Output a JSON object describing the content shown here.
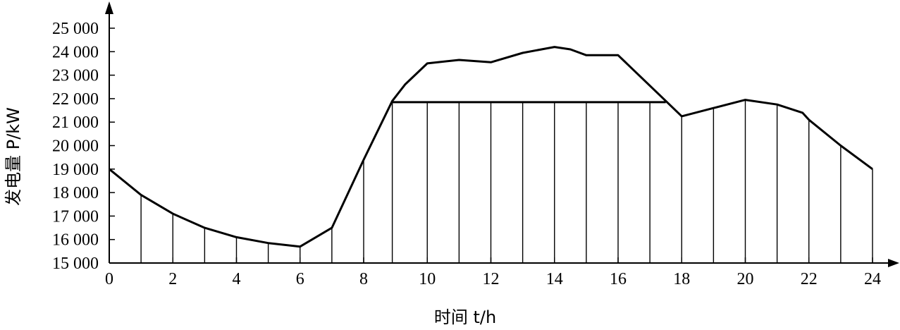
{
  "chart_data": {
    "type": "line",
    "xlabel": "时间 t/h",
    "ylabel": "发电量 P/kW",
    "xlim": [
      0,
      24
    ],
    "ylim": [
      15000,
      25000
    ],
    "x_ticks": [
      "0",
      "2",
      "4",
      "6",
      "8",
      "10",
      "12",
      "14",
      "16",
      "18",
      "20",
      "22",
      "24"
    ],
    "y_ticks": [
      "15 000",
      "16 000",
      "17 000",
      "18 000",
      "19 000",
      "20 000",
      "21 000",
      "22 000",
      "23 000",
      "24 000",
      "25 000"
    ],
    "grid": false,
    "series": [
      {
        "x": [
          0,
          1,
          2,
          3,
          4,
          5,
          6,
          7,
          8,
          8.9,
          9.3,
          10,
          11,
          12,
          13,
          14,
          14.5,
          15,
          16,
          17.5,
          18,
          19,
          20,
          21,
          21.8,
          22,
          23,
          24
        ],
        "y": [
          19000,
          17900,
          17100,
          16500,
          16100,
          15850,
          15700,
          16500,
          19400,
          21900,
          22600,
          23500,
          23650,
          23550,
          23950,
          24200,
          24100,
          23850,
          23850,
          21900,
          21250,
          21600,
          21950,
          21750,
          21400,
          21100,
          20000,
          19000
        ]
      }
    ],
    "reference_line": {
      "y": 21850,
      "x_start": 8.9,
      "x_end": 17.5
    },
    "hatch_x": [
      1,
      2,
      3,
      4,
      5,
      6,
      7,
      8,
      8.9,
      10,
      11,
      12,
      13,
      14,
      15,
      16,
      17,
      18,
      19,
      20,
      21,
      22,
      23,
      24
    ]
  }
}
